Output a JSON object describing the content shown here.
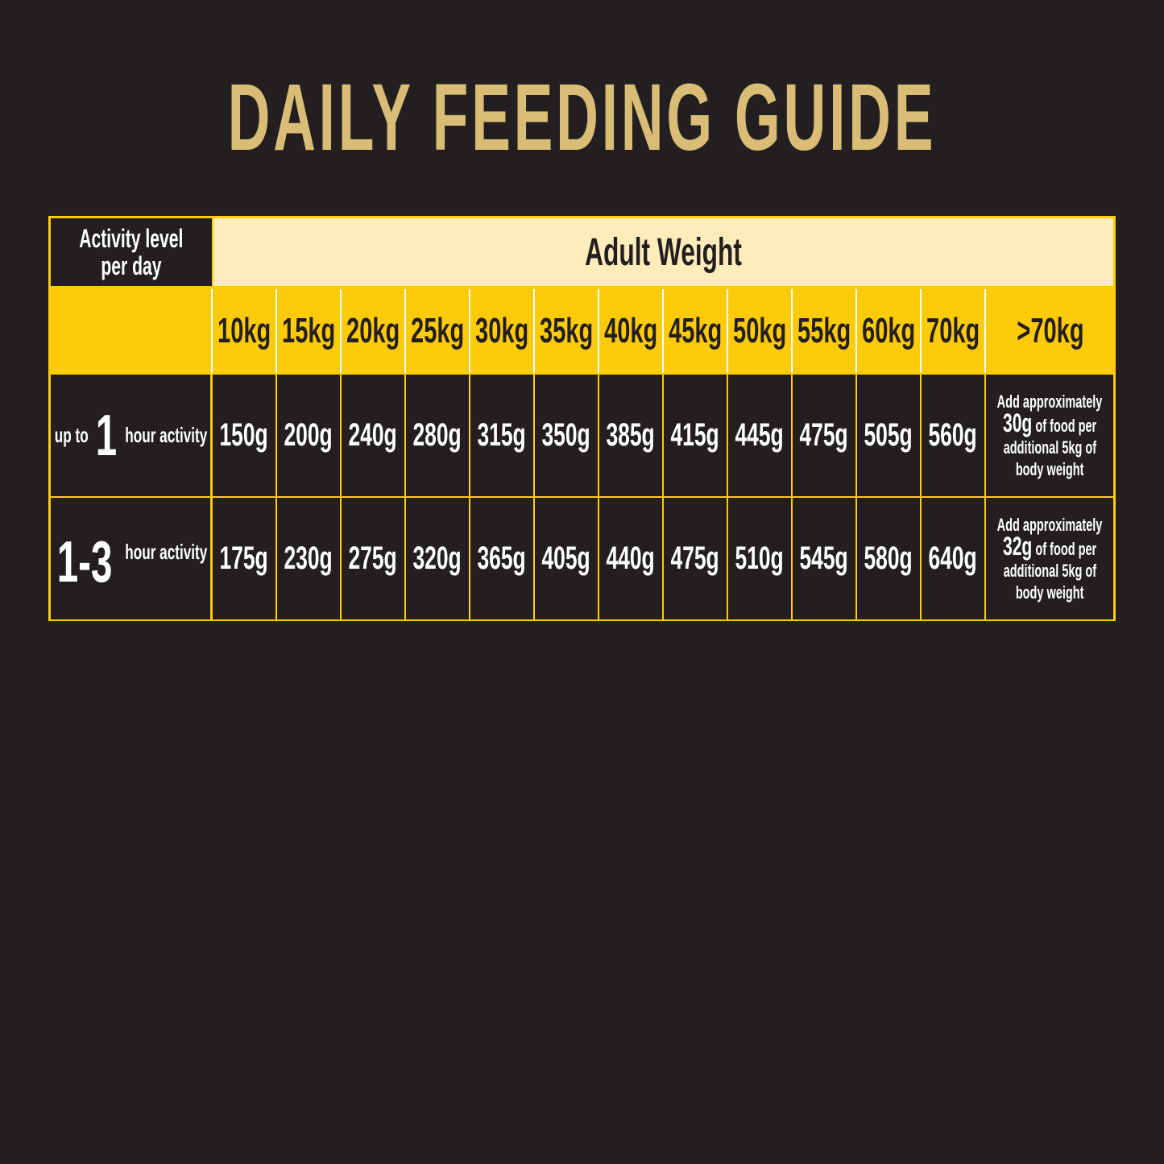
{
  "title": "DAILY FEEDING GUIDE",
  "table": {
    "corner_label_line1": "Activity level",
    "corner_label_line2": "per day",
    "group_header": "Adult Weight",
    "weights": [
      "10kg",
      "15kg",
      "20kg",
      "25kg",
      "30kg",
      "35kg",
      "40kg",
      "45kg",
      "50kg",
      "55kg",
      "60kg",
      "70kg",
      ">70kg"
    ],
    "rows": [
      {
        "label_prefix": "up to",
        "label_number": "1",
        "label_suffix": "hour activity",
        "values": [
          "150g",
          "200g",
          "240g",
          "280g",
          "315g",
          "350g",
          "385g",
          "415g",
          "445g",
          "475g",
          "505g",
          "560g"
        ],
        "note_line1": "Add approximately",
        "note_amount": "30g",
        "note_line2": "of food per",
        "note_line3": "additional 5kg of",
        "note_line4": "body weight"
      },
      {
        "label_prefix": "",
        "label_number": "1-3",
        "label_suffix": "hour activity",
        "values": [
          "175g",
          "230g",
          "275g",
          "320g",
          "365g",
          "405g",
          "440g",
          "475g",
          "510g",
          "545g",
          "580g",
          "640g"
        ],
        "note_line1": "Add approximately",
        "note_amount": "32g",
        "note_line2": "of food per",
        "note_line3": "additional 5kg of",
        "note_line4": "body weight"
      }
    ]
  },
  "colors": {
    "background": "#231f20",
    "title": "#d9bd77",
    "yellow": "#fecb0a",
    "cream": "#feedbb"
  }
}
